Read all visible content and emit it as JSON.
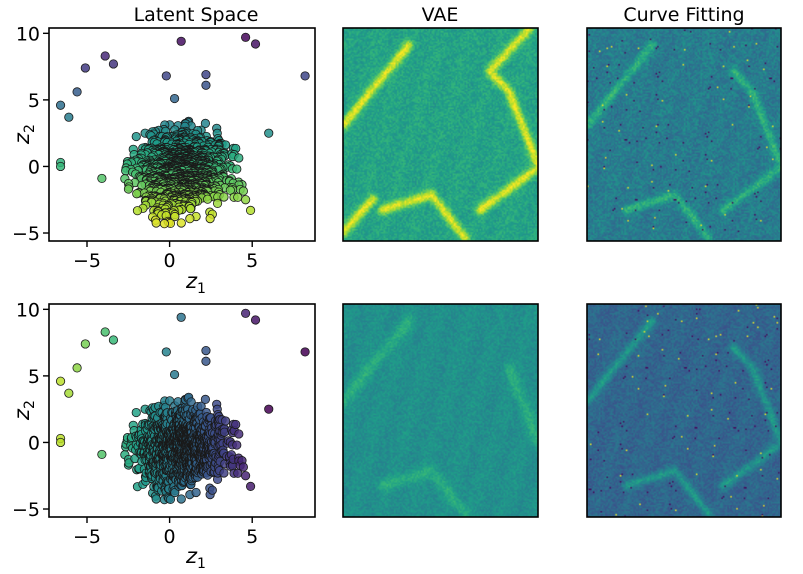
{
  "chart_data": [
    {
      "type": "scatter",
      "title": "Latent Space",
      "xlabel": "z",
      "xlabel_sub": "1",
      "ylabel": "z",
      "ylabel_sub": "2",
      "xlim": [
        -7.3,
        8.8
      ],
      "ylim": [
        -5.6,
        10.4
      ],
      "xticks": [
        -5,
        0,
        5
      ],
      "yticks": [
        -5,
        0,
        5,
        10
      ],
      "xtick_labels": [
        "−5",
        "0",
        "5"
      ],
      "ytick_labels": [
        "−5",
        "0",
        "5",
        "10"
      ],
      "colormap": "viridis",
      "color_by": "z2",
      "outliers": [
        {
          "x": 0.7,
          "y": 9.4
        },
        {
          "x": 4.6,
          "y": 9.7
        },
        {
          "x": 5.2,
          "y": 9.2
        },
        {
          "x": -3.9,
          "y": 8.3
        },
        {
          "x": -3.4,
          "y": 7.7
        },
        {
          "x": -5.1,
          "y": 7.4
        },
        {
          "x": 8.2,
          "y": 6.8
        },
        {
          "x": -0.2,
          "y": 6.8
        },
        {
          "x": 2.2,
          "y": 6.9
        },
        {
          "x": -5.6,
          "y": 5.6
        },
        {
          "x": 2.2,
          "y": 6.1
        },
        {
          "x": 0.3,
          "y": 5.1
        },
        {
          "x": -6.6,
          "y": 4.6
        },
        {
          "x": -6.1,
          "y": 3.7
        },
        {
          "x": 6.0,
          "y": 2.5
        },
        {
          "x": -6.6,
          "y": 0.3
        },
        {
          "x": -6.6,
          "y": 0.0
        },
        {
          "x": -4.1,
          "y": -0.9
        },
        {
          "x": 4.6,
          "y": -2.5
        },
        {
          "x": 4.9,
          "y": -3.3
        }
      ],
      "cluster": {
        "center": [
          0.8,
          -0.4
        ],
        "x_range": [
          -3.3,
          4.6
        ],
        "y_range": [
          -4.9,
          3.4
        ]
      }
    },
    {
      "type": "heatmap",
      "title": "VAE",
      "colormap": "viridis",
      "ridges": [
        {
          "from": [
            0.0,
            0.45
          ],
          "to": [
            0.33,
            0.08
          ]
        },
        {
          "from": [
            0.0,
            0.95
          ],
          "to": [
            0.15,
            0.8
          ]
        },
        {
          "from": [
            0.2,
            0.85
          ],
          "to": [
            0.45,
            0.78
          ]
        },
        {
          "from": [
            0.45,
            0.78
          ],
          "to": [
            0.62,
            0.98
          ]
        },
        {
          "from": [
            0.7,
            0.85
          ],
          "to": [
            1.0,
            0.65
          ]
        },
        {
          "from": [
            0.85,
            0.3
          ],
          "to": [
            1.0,
            0.65
          ]
        },
        {
          "from": [
            0.85,
            0.3
          ],
          "to": [
            0.75,
            0.2
          ]
        },
        {
          "from": [
            0.75,
            0.2
          ],
          "to": [
            0.95,
            0.0
          ]
        }
      ]
    },
    {
      "type": "heatmap",
      "title": "Curve Fitting",
      "colormap": "viridis",
      "ridges": [
        {
          "from": [
            0.0,
            0.45
          ],
          "to": [
            0.33,
            0.08
          ]
        },
        {
          "from": [
            0.2,
            0.85
          ],
          "to": [
            0.45,
            0.78
          ]
        },
        {
          "from": [
            0.45,
            0.78
          ],
          "to": [
            0.62,
            0.98
          ]
        },
        {
          "from": [
            0.7,
            0.85
          ],
          "to": [
            1.0,
            0.65
          ]
        },
        {
          "from": [
            0.85,
            0.3
          ],
          "to": [
            1.0,
            0.65
          ]
        },
        {
          "from": [
            0.85,
            0.3
          ],
          "to": [
            0.75,
            0.2
          ]
        }
      ]
    },
    {
      "type": "scatter",
      "title": "",
      "xlabel": "z",
      "xlabel_sub": "1",
      "ylabel": "z",
      "ylabel_sub": "2",
      "xlim": [
        -7.3,
        8.8
      ],
      "ylim": [
        -5.6,
        10.4
      ],
      "xticks": [
        -5,
        0,
        5
      ],
      "yticks": [
        -5,
        0,
        5,
        10
      ],
      "xtick_labels": [
        "−5",
        "0",
        "5"
      ],
      "ytick_labels": [
        "−5",
        "0",
        "5",
        "10"
      ],
      "colormap": "viridis",
      "color_by": "-z1",
      "outliers": [
        {
          "x": 0.7,
          "y": 9.4
        },
        {
          "x": 4.6,
          "y": 9.7
        },
        {
          "x": 5.2,
          "y": 9.2
        },
        {
          "x": -3.9,
          "y": 8.3
        },
        {
          "x": -3.4,
          "y": 7.7
        },
        {
          "x": -5.1,
          "y": 7.4
        },
        {
          "x": 8.2,
          "y": 6.8
        },
        {
          "x": -0.2,
          "y": 6.8
        },
        {
          "x": 2.2,
          "y": 6.9
        },
        {
          "x": -5.6,
          "y": 5.6
        },
        {
          "x": 2.2,
          "y": 6.1
        },
        {
          "x": 0.3,
          "y": 5.1
        },
        {
          "x": -6.6,
          "y": 4.6
        },
        {
          "x": -6.1,
          "y": 3.7
        },
        {
          "x": 6.0,
          "y": 2.5
        },
        {
          "x": -6.6,
          "y": 0.3
        },
        {
          "x": -6.6,
          "y": 0.0
        },
        {
          "x": -4.1,
          "y": -0.9
        },
        {
          "x": 4.6,
          "y": -2.5
        },
        {
          "x": 4.9,
          "y": -3.3
        }
      ],
      "cluster": {
        "center": [
          0.8,
          -0.4
        ],
        "x_range": [
          -3.3,
          4.6
        ],
        "y_range": [
          -4.9,
          3.4
        ]
      }
    },
    {
      "type": "heatmap",
      "title": "",
      "colormap": "viridis",
      "ridges": [
        {
          "from": [
            0.0,
            0.45
          ],
          "to": [
            0.33,
            0.08
          ]
        },
        {
          "from": [
            0.2,
            0.85
          ],
          "to": [
            0.45,
            0.78
          ]
        },
        {
          "from": [
            0.45,
            0.78
          ],
          "to": [
            0.62,
            0.98
          ]
        },
        {
          "from": [
            0.85,
            0.3
          ],
          "to": [
            1.0,
            0.65
          ]
        }
      ]
    },
    {
      "type": "heatmap",
      "title": "",
      "colormap": "viridis",
      "ridges": [
        {
          "from": [
            0.0,
            0.45
          ],
          "to": [
            0.33,
            0.08
          ]
        },
        {
          "from": [
            0.2,
            0.85
          ],
          "to": [
            0.45,
            0.78
          ]
        },
        {
          "from": [
            0.45,
            0.78
          ],
          "to": [
            0.62,
            0.98
          ]
        },
        {
          "from": [
            0.7,
            0.85
          ],
          "to": [
            1.0,
            0.65
          ]
        },
        {
          "from": [
            0.85,
            0.3
          ],
          "to": [
            1.0,
            0.65
          ]
        },
        {
          "from": [
            0.85,
            0.3
          ],
          "to": [
            0.75,
            0.2
          ]
        }
      ]
    }
  ]
}
